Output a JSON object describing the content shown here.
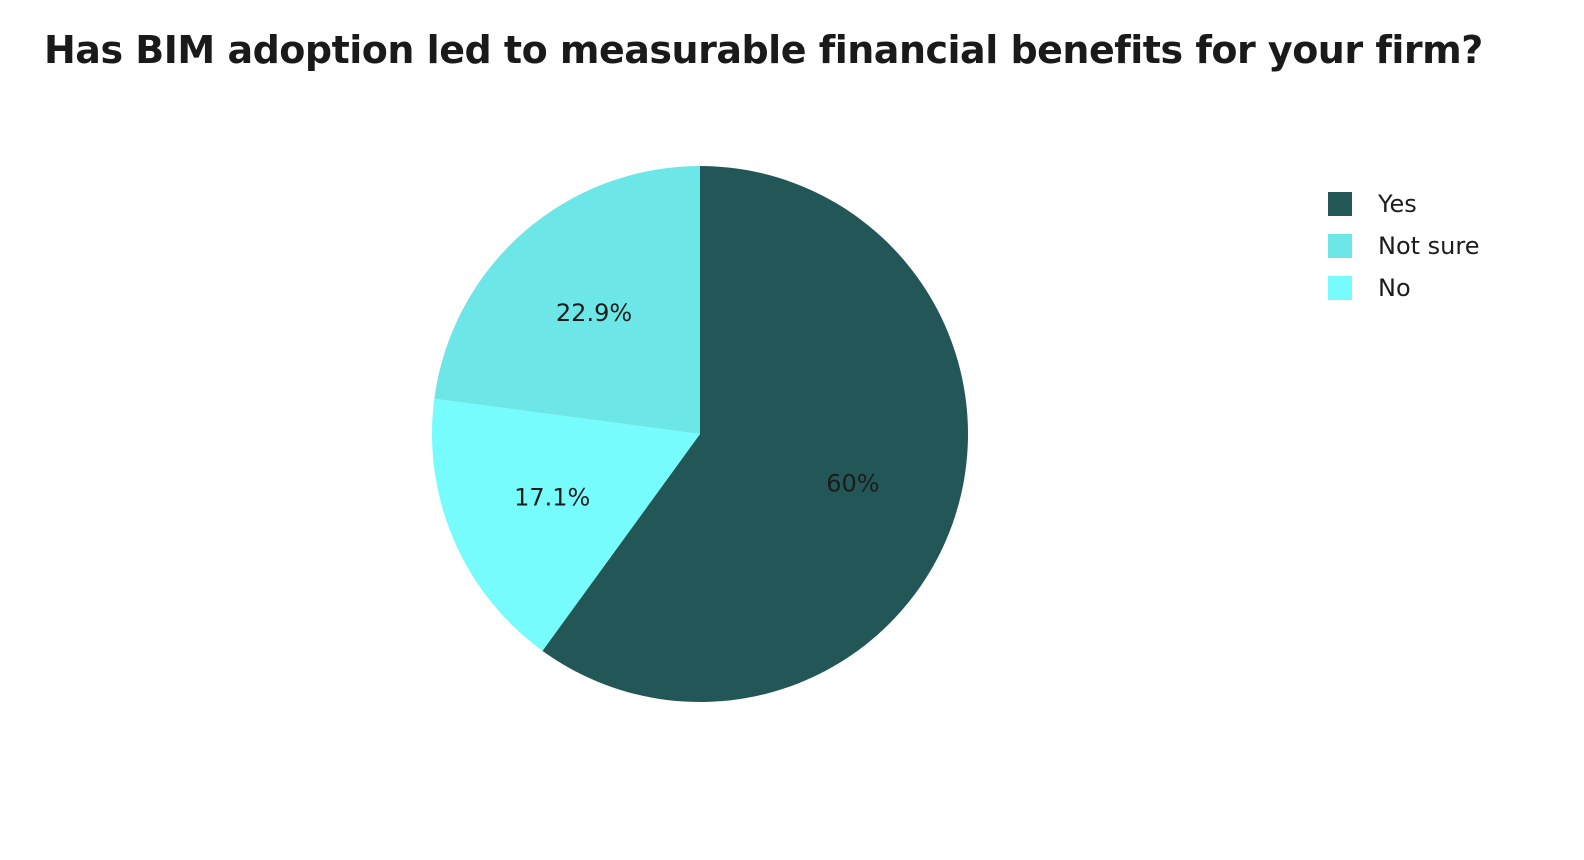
{
  "chart_data": {
    "type": "pie",
    "title": "Has BIM adoption led to measurable financial benefits for your firm?",
    "legend_position": "top-right",
    "slices": [
      {
        "name": "Yes",
        "value": 60,
        "label": "60%",
        "color": "#235657"
      },
      {
        "name": "No",
        "value": 17.1,
        "label": "17.1%",
        "color": "#77fcfd"
      },
      {
        "name": "Not sure",
        "value": 22.9,
        "label": "22.9%",
        "color": "#6ce6e6"
      }
    ],
    "legend": [
      {
        "name": "Yes",
        "color": "#235657"
      },
      {
        "name": "Not sure",
        "color": "#6ce6e6"
      },
      {
        "name": "No",
        "color": "#77fcfd"
      }
    ]
  }
}
